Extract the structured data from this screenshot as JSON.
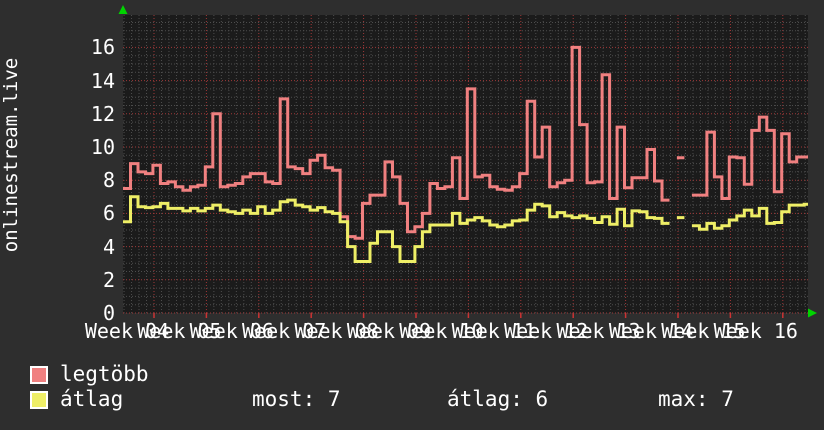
{
  "title_vertical": "onlinestream.live",
  "legend": {
    "series1_label": "legtöbb",
    "series2_label": "átlag"
  },
  "stats": {
    "most": "most: 7",
    "atlag": "átlag: 6",
    "max": "max: 7"
  },
  "colors": {
    "background": "#2e2e2e",
    "canvas": "#1b1b1b",
    "grid_major": "#a03838",
    "grid_minor": "#4d4d4d",
    "axis_tick": "#cc3333",
    "arrow": "#00d400",
    "series_max": "#f08080",
    "series_avg": "#eeee66",
    "text": "#ffffff"
  },
  "chart_data": {
    "type": "line",
    "title": "onlinestream.live",
    "style": "rrdtool step lines",
    "ylabel": "",
    "xlabel": "",
    "ylim": [
      0,
      18
    ],
    "y_ticks": [
      "0",
      "2",
      "4",
      "6",
      "8",
      "10",
      "12",
      "14",
      "16"
    ],
    "x_labels": [
      "Week 04",
      "Week 05",
      "Week 06",
      "Week 07",
      "Week 08",
      "Week 09",
      "Week 10",
      "Week 11",
      "Week 12",
      "Week 13",
      "Week 14",
      "Week 15",
      "Week 16"
    ],
    "x_unit": "day",
    "grid": "red dotted major (2 units / 1 week), gray dotted minor (0.5 unit / 1 day)",
    "legend_position": "bottom-left",
    "series": [
      {
        "name": "legtöbb",
        "color": "#f08080",
        "values": [
          7.5,
          9,
          8.5,
          8.4,
          8.9,
          7.8,
          7.9,
          7.6,
          7.4,
          7.6,
          7.7,
          8.8,
          12,
          7.6,
          7.7,
          7.8,
          8.2,
          8.4,
          8.4,
          7.9,
          7.8,
          12.9,
          8.8,
          8.7,
          8.4,
          9.2,
          9.5,
          8.75,
          8.6,
          5.8,
          4.6,
          4.5,
          6.6,
          7.1,
          7.1,
          9.1,
          8.2,
          6.6,
          4.9,
          5.2,
          6,
          7.8,
          7.5,
          7.6,
          9.35,
          6.9,
          13.5,
          8.2,
          8.3,
          7.6,
          7.45,
          7.4,
          7.6,
          8.4,
          12.75,
          9.4,
          11.2,
          7.6,
          7.85,
          8,
          16,
          11.35,
          7.85,
          7.9,
          14.35,
          6.9,
          11.2,
          7.55,
          8.15,
          8.15,
          9.85,
          7.95,
          6.8,
          null,
          9.35,
          null,
          7.1,
          7.1,
          10.9,
          8.2,
          6.9,
          9.4,
          9.35,
          7.75,
          11,
          11.8,
          11,
          7.3,
          10.8,
          9.1,
          9.4,
          9.4
        ]
      },
      {
        "name": "átlag",
        "color": "#eeee66",
        "values": [
          5.5,
          7,
          6.4,
          6.35,
          6.4,
          6.6,
          6.3,
          6.3,
          6.15,
          6.3,
          6.15,
          6.3,
          6.5,
          6.2,
          6.1,
          6,
          6.2,
          6,
          6.4,
          6,
          6.2,
          6.7,
          6.8,
          6.5,
          6.4,
          6.2,
          6.35,
          6.1,
          6,
          5.5,
          4,
          3.1,
          3.1,
          4.2,
          4.9,
          4.9,
          4,
          3.1,
          3.1,
          4,
          4.9,
          5.3,
          5.3,
          5.3,
          6,
          5.4,
          5.6,
          5.75,
          5.55,
          5.3,
          5.2,
          5.3,
          5.55,
          5.6,
          6.2,
          6.55,
          6.45,
          5.8,
          6.05,
          5.85,
          5.75,
          5.85,
          5.7,
          5.45,
          5.8,
          5.35,
          6.25,
          5.25,
          6.15,
          6.1,
          5.75,
          5.7,
          5.4,
          null,
          5.75,
          null,
          5.25,
          5.05,
          5.4,
          5.1,
          5.25,
          5.6,
          5.85,
          6.2,
          5.85,
          6.3,
          5.4,
          5.45,
          6.1,
          6.5,
          6.5,
          6.55
        ]
      }
    ]
  }
}
